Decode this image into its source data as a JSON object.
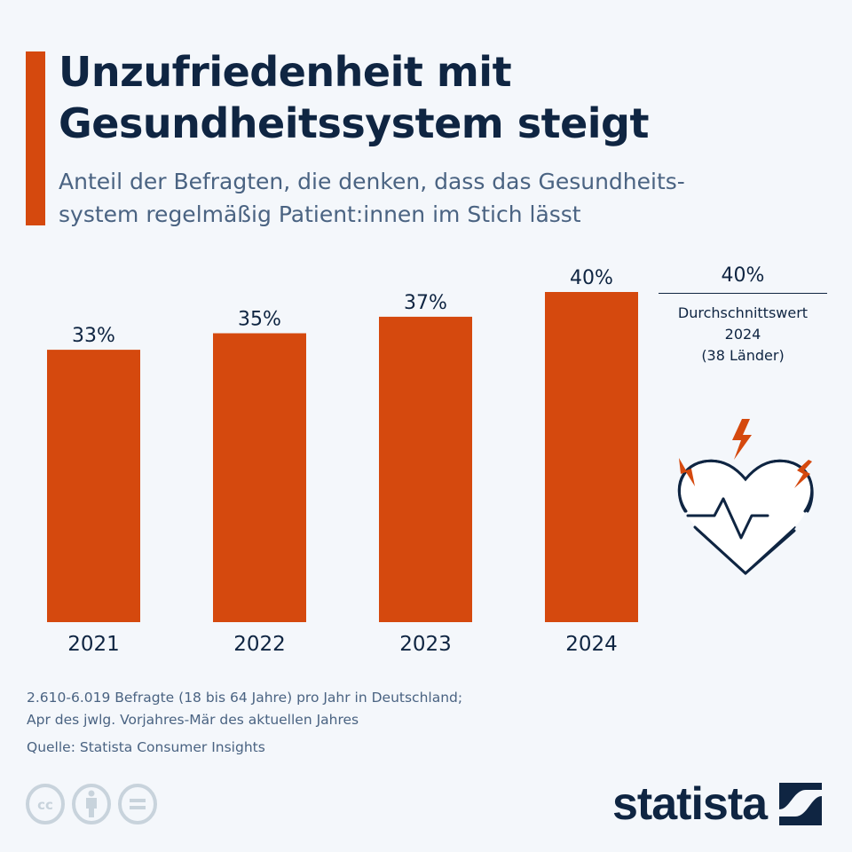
{
  "header": {
    "title_line1": "Unzufriedenheit mit",
    "title_line2": "Gesundheitssystem steigt",
    "subtitle_line1": "Anteil der Befragten, die denken, dass das Gesundheits-",
    "subtitle_line2": "system regelmäßig Patient:innen im Stich lässt"
  },
  "colors": {
    "accent": "#d5490e",
    "text_dark": "#0f2542",
    "text_muted": "#4a6382",
    "background": "#f4f7fb",
    "license_icons": "#c8d3dc"
  },
  "chart_data": {
    "type": "bar",
    "title": "Unzufriedenheit mit Gesundheitssystem steigt",
    "subtitle": "Anteil der Befragten, die denken, dass das Gesundheitssystem regelmäßig Patient:innen im Stich lässt",
    "categories": [
      "2021",
      "2022",
      "2023",
      "2024"
    ],
    "values": [
      33,
      35,
      37,
      40
    ],
    "value_labels": [
      "33%",
      "35%",
      "37%",
      "40%"
    ],
    "unit": "%",
    "xlabel": "",
    "ylabel": "",
    "ylim": [
      0,
      40
    ],
    "grid": false,
    "legend": "none"
  },
  "average_box": {
    "value": "40%",
    "caption_line1": "Durchschnittswert",
    "caption_line2": "2024",
    "caption_line3": "(38 Länder)"
  },
  "illustration": {
    "icon": "heart-pulse-icon"
  },
  "footer": {
    "note_line1": "2.610-6.019 Befragte (18 bis 64 Jahre) pro Jahr in Deutschland;",
    "note_line2": "Apr des jwlg. Vorjahres-Mär des aktuellen Jahres",
    "source": "Quelle: Statista Consumer Insights",
    "license_icons": [
      "cc-icon",
      "attribution-icon",
      "no-derivatives-icon"
    ],
    "logo_text": "statista"
  }
}
